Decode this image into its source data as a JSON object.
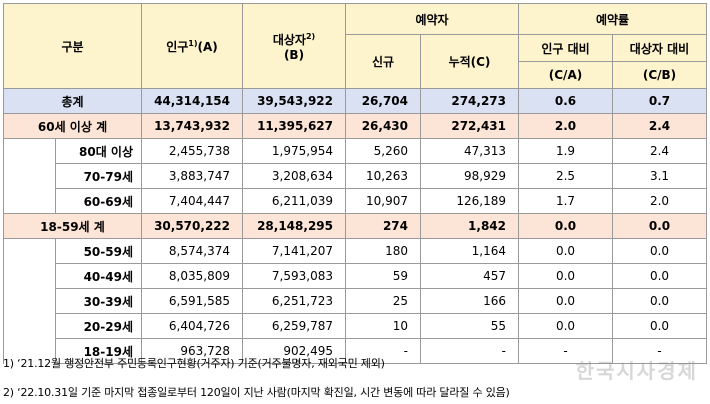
{
  "header": {
    "category": "구분",
    "population": "인구",
    "population_sup": "1)",
    "population_unit": "(A)",
    "target": "대상자",
    "target_sup": "2)",
    "target_unit": "(B)",
    "reserved": "예약자",
    "new": "신규",
    "cumulative": "누적(C)",
    "rate": "예약률",
    "rate_pop": "인구 대비",
    "rate_pop_unit": "(C/A)",
    "rate_target": "대상자 대비",
    "rate_target_unit": "(C/B)"
  },
  "rows": [
    {
      "label": "총계",
      "kind": "total",
      "cells": [
        "44,314,154",
        "39,543,922",
        "26,704",
        "274,273",
        "0.6",
        "0.7"
      ]
    },
    {
      "label": "60세 이상 계",
      "kind": "group",
      "cells": [
        "13,743,932",
        "11,395,627",
        "26,430",
        "272,431",
        "2.0",
        "2.4"
      ]
    },
    {
      "label": "80대 이상",
      "kind": "sub",
      "cells": [
        "2,455,738",
        "1,975,954",
        "5,260",
        "47,313",
        "1.9",
        "2.4"
      ]
    },
    {
      "label": "70-79세",
      "kind": "sub",
      "cells": [
        "3,883,747",
        "3,208,634",
        "10,263",
        "98,929",
        "2.5",
        "3.1"
      ]
    },
    {
      "label": "60-69세",
      "kind": "sub",
      "cells": [
        "7,404,447",
        "6,211,039",
        "10,907",
        "126,189",
        "1.7",
        "2.0"
      ]
    },
    {
      "label": "18-59세 계",
      "kind": "group",
      "cells": [
        "30,570,222",
        "28,148,295",
        "274",
        "1,842",
        "0.0",
        "0.0"
      ]
    },
    {
      "label": "50-59세",
      "kind": "sub",
      "cells": [
        "8,574,374",
        "7,141,207",
        "180",
        "1,164",
        "0.0",
        "0.0"
      ]
    },
    {
      "label": "40-49세",
      "kind": "sub",
      "cells": [
        "8,035,809",
        "7,593,083",
        "59",
        "457",
        "0.0",
        "0.0"
      ]
    },
    {
      "label": "30-39세",
      "kind": "sub",
      "cells": [
        "6,591,585",
        "6,251,723",
        "25",
        "166",
        "0.0",
        "0.0"
      ]
    },
    {
      "label": "20-29세",
      "kind": "sub",
      "cells": [
        "6,404,726",
        "6,259,787",
        "10",
        "55",
        "0.0",
        "0.0"
      ]
    },
    {
      "label": "18-19세",
      "kind": "sub",
      "cells": [
        "963,728",
        "902,495",
        "-",
        "-",
        "-",
        "-"
      ]
    }
  ],
  "footnotes": [
    "1) ‘21.12월 행정안전부 주민등록인구현황(거주자) 기준(거주불명자, 재외국민 제외)",
    "2) ‘22.10.31일 기준 마지막 접종일로부터 120일이 지난 사람(마지막 확진일, 시간 변동에 따라 달라질 수 있음)"
  ],
  "watermark": "한국시사경제"
}
